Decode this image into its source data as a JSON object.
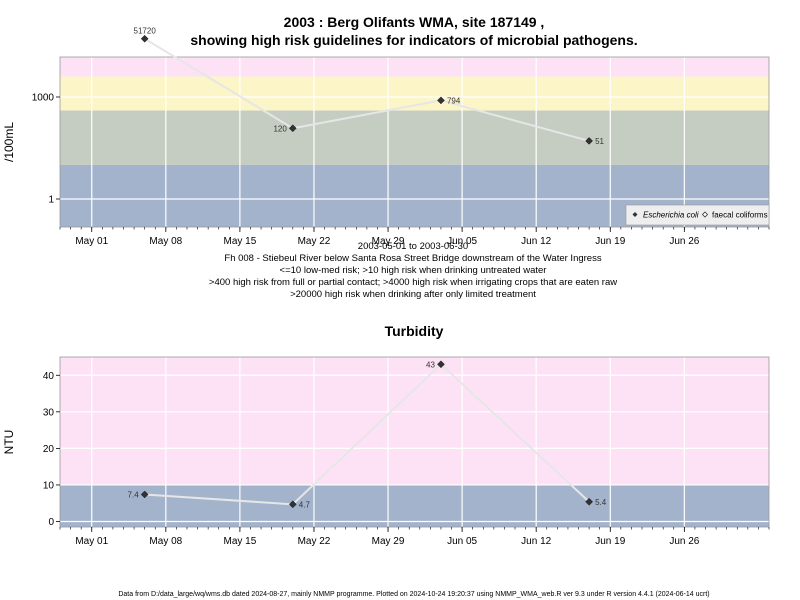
{
  "chart_data": [
    {
      "type": "line",
      "title_line1": "2003 : Berg Olifants WMA, site 187149 ,",
      "title_line2": "showing high risk guidelines for indicators of microbial pathogens.",
      "ylabel": "/100mL",
      "yscale": "log10",
      "ylim": [
        0.15,
        15000
      ],
      "ytick_values": [
        1,
        1000
      ],
      "ytick_labels": [
        "1",
        "1000"
      ],
      "x_dates": [
        "2003-05-01",
        "2003-05-08",
        "2003-05-15",
        "2003-05-22",
        "2003-05-29",
        "2003-06-05",
        "2003-06-12",
        "2003-06-19",
        "2003-06-26"
      ],
      "xtick_labels": [
        "May 01",
        "May 08",
        "May 15",
        "May 22",
        "May 29",
        "Jun 05",
        "Jun 12",
        "Jun 19",
        "Jun 26"
      ],
      "xlim": [
        "2003-04-28",
        "2003-07-04"
      ],
      "grid": true,
      "bands": [
        {
          "from": 0.15,
          "to": 10,
          "color": "#a3b3cc"
        },
        {
          "from": 10,
          "to": 400,
          "color": "#c5cdc3"
        },
        {
          "from": 400,
          "to": 4000,
          "color": "#fcf5c7"
        },
        {
          "from": 4000,
          "to": 20000,
          "color": "#fde2f6"
        },
        {
          "from": 20000,
          "to": 100000,
          "color": "#fab6c6"
        }
      ],
      "series": [
        {
          "name": "Escherichia coli",
          "marker": "filled-diamond",
          "x": [
            "2003-05-06",
            "2003-05-20",
            "2003-06-03",
            "2003-06-17"
          ],
          "values": [
            51720,
            120,
            794,
            51
          ],
          "labels": [
            "51720",
            "120",
            "794",
            "51"
          ],
          "label_side": [
            "above",
            "left",
            "right",
            "right"
          ]
        },
        {
          "name": "faecal coliforms",
          "marker": "open-diamond",
          "x": [],
          "values": []
        }
      ],
      "legend_position": "bottom-right",
      "subtitle_lines": [
        "2003-05-01 to 2003-06-30",
        "Fh 008 - Stiebeul River below Santa Rosa Street Bridge downstream of the Water Ingress",
        "<=10 low-med risk; >10 high risk when drinking untreated water",
        ">400 high risk from full or partial contact; >4000 high risk when irrigating crops that are eaten raw",
        ">20000 high risk when drinking after only limited treatment"
      ]
    },
    {
      "type": "line",
      "title": "Turbidity",
      "ylabel": "NTU",
      "ylim": [
        -1.5,
        45
      ],
      "ytick_values": [
        0,
        10,
        20,
        30,
        40
      ],
      "x_dates": [
        "2003-05-01",
        "2003-05-08",
        "2003-05-15",
        "2003-05-22",
        "2003-05-29",
        "2003-06-05",
        "2003-06-12",
        "2003-06-19",
        "2003-06-26"
      ],
      "xtick_labels": [
        "May 01",
        "May 08",
        "May 15",
        "May 22",
        "May 29",
        "Jun 05",
        "Jun 12",
        "Jun 19",
        "Jun 26"
      ],
      "xlim": [
        "2003-04-28",
        "2003-07-04"
      ],
      "grid": true,
      "bands": [
        {
          "from": -1.5,
          "to": 10,
          "color": "#a3b3cc"
        },
        {
          "from": 10,
          "to": 45,
          "color": "#fde2f6"
        }
      ],
      "series": [
        {
          "name": "",
          "marker": "filled-diamond",
          "x": [
            "2003-05-06",
            "2003-05-20",
            "2003-06-03",
            "2003-06-17"
          ],
          "values": [
            7.4,
            4.7,
            43,
            5.4
          ],
          "labels": [
            "7.4",
            "4.7",
            "43",
            "5.4"
          ],
          "label_side": [
            "left",
            "right",
            "left",
            "right"
          ]
        }
      ]
    }
  ],
  "footer": "Data from D:/data_large/wq/wms.db dated 2024-08-27, mainly NMMP programme. Plotted on 2024-10-24 19:20:37 using NMMP_WMA_web.R ver 9.3 under R version 4.4.1 (2024-06-14 ucrt)"
}
